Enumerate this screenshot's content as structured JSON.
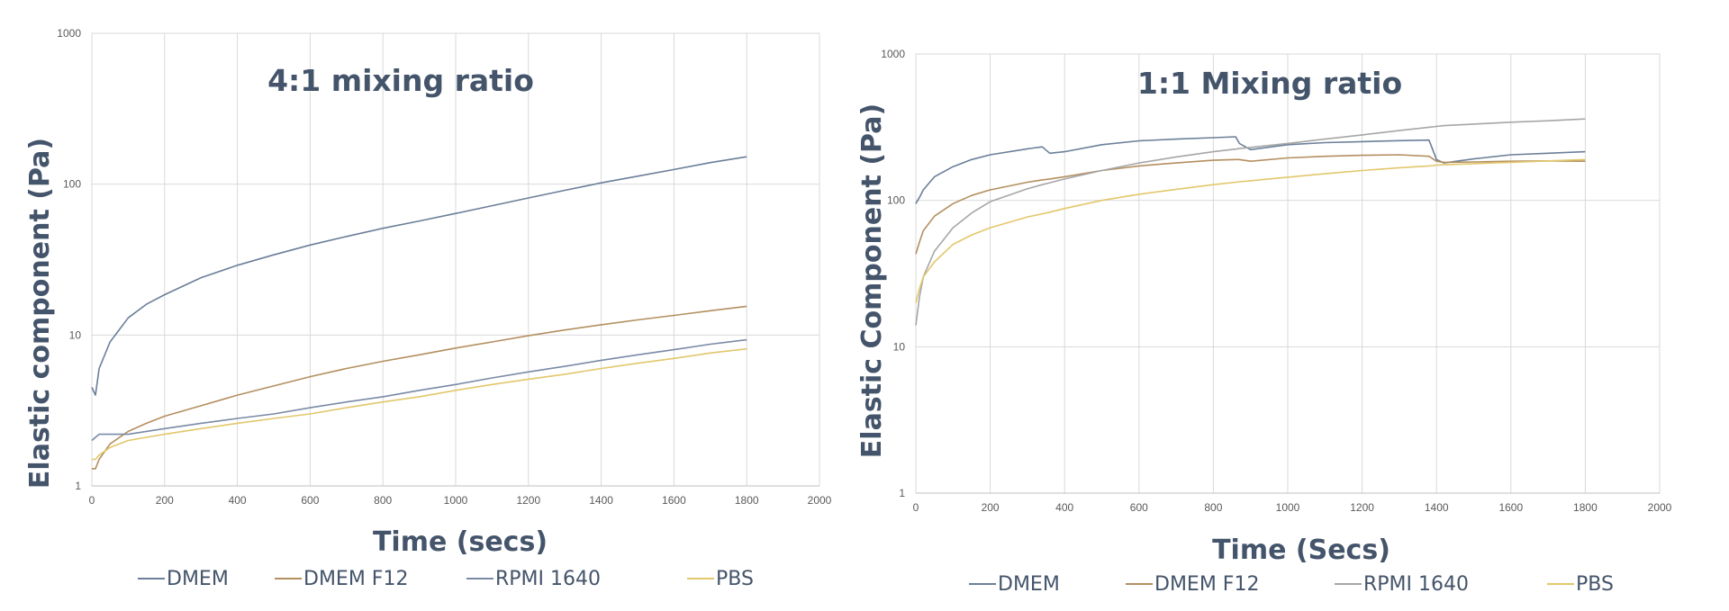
{
  "chart_data": [
    {
      "type": "line",
      "title": "4:1 mixing ratio",
      "xlabel": "Time (secs)",
      "ylabel": "Elastic component (Pa)",
      "xlim": [
        0,
        2000
      ],
      "ylim": [
        1,
        1000
      ],
      "yscale": "log",
      "grid": true,
      "legend_position": "bottom",
      "x_ticks": [
        "0",
        "200",
        "400",
        "600",
        "800",
        "1000",
        "1200",
        "1400",
        "1600",
        "1800",
        "2000"
      ],
      "y_ticks": [
        "1",
        "10",
        "100",
        "1000"
      ],
      "x": [
        0,
        10,
        20,
        50,
        100,
        150,
        200,
        300,
        400,
        500,
        600,
        700,
        800,
        900,
        1000,
        1100,
        1200,
        1300,
        1400,
        1500,
        1600,
        1700,
        1800
      ],
      "series": [
        {
          "name": "DMEM",
          "color": "#6B7F99",
          "values": [
            4.5,
            4.0,
            6.0,
            9.0,
            13.0,
            16.0,
            18.5,
            24.0,
            29.0,
            34.0,
            39.5,
            45.0,
            51.0,
            57.0,
            64.0,
            72.0,
            81.0,
            91.0,
            102.0,
            113.0,
            125.0,
            139.0,
            152.0
          ]
        },
        {
          "name": "DMEM F12",
          "color": "#B38F5F",
          "values": [
            1.3,
            1.3,
            1.5,
            1.9,
            2.3,
            2.6,
            2.9,
            3.4,
            4.0,
            4.6,
            5.3,
            6.0,
            6.7,
            7.4,
            8.2,
            9.0,
            9.9,
            10.8,
            11.7,
            12.6,
            13.5,
            14.5,
            15.5
          ]
        },
        {
          "name": "RPMI 1640",
          "color": "#7A8AA6",
          "values": [
            2.0,
            2.1,
            2.2,
            2.2,
            2.2,
            2.3,
            2.4,
            2.6,
            2.8,
            3.0,
            3.3,
            3.6,
            3.9,
            4.3,
            4.7,
            5.2,
            5.7,
            6.2,
            6.8,
            7.4,
            8.0,
            8.7,
            9.3
          ]
        },
        {
          "name": "PBS",
          "color": "#E2C76B",
          "values": [
            1.5,
            1.5,
            1.6,
            1.8,
            2.0,
            2.1,
            2.2,
            2.4,
            2.6,
            2.8,
            3.0,
            3.3,
            3.6,
            3.9,
            4.3,
            4.7,
            5.1,
            5.5,
            6.0,
            6.5,
            7.0,
            7.6,
            8.1
          ]
        }
      ]
    },
    {
      "type": "line",
      "title": "1:1 Mixing ratio",
      "xlabel": "Time (Secs)",
      "ylabel": "Elastic Component (Pa)",
      "xlim": [
        0,
        2000
      ],
      "ylim": [
        1,
        1000
      ],
      "yscale": "log",
      "grid": true,
      "legend_position": "bottom",
      "x_ticks": [
        "0",
        "200",
        "400",
        "600",
        "800",
        "1000",
        "1200",
        "1400",
        "1600",
        "1800",
        "2000"
      ],
      "y_ticks": [
        "1",
        "10",
        "100",
        "1000"
      ],
      "x": [
        0,
        10,
        20,
        50,
        100,
        150,
        200,
        300,
        340,
        360,
        400,
        500,
        600,
        700,
        800,
        860,
        870,
        900,
        1000,
        1100,
        1200,
        1300,
        1380,
        1400,
        1420,
        1500,
        1600,
        1700,
        1800
      ],
      "series": [
        {
          "name": "DMEM",
          "color": "#6B7F99",
          "values": [
            95,
            105,
            118,
            145,
            170,
            190,
            205,
            225,
            232,
            210,
            215,
            240,
            255,
            262,
            268,
            272,
            245,
            222,
            240,
            248,
            252,
            256,
            258,
            190,
            180,
            192,
            205,
            210,
            215
          ]
        },
        {
          "name": "DMEM F12",
          "color": "#B38F5F",
          "values": [
            43,
            52,
            62,
            78,
            95,
            108,
            118,
            133,
            138,
            140,
            145,
            160,
            172,
            180,
            188,
            190,
            190,
            185,
            195,
            200,
            203,
            205,
            200,
            185,
            182,
            183,
            185,
            186,
            185
          ]
        },
        {
          "name": "RPMI 1640",
          "color": "#A6A6A6",
          "values": [
            14,
            22,
            30,
            45,
            65,
            82,
            98,
            120,
            128,
            132,
            140,
            160,
            180,
            198,
            215,
            224,
            226,
            230,
            245,
            262,
            280,
            300,
            316,
            320,
            324,
            332,
            342,
            350,
            360
          ]
        },
        {
          "name": "PBS",
          "color": "#E2C76B",
          "values": [
            20,
            25,
            30,
            38,
            50,
            58,
            65,
            77,
            81,
            83,
            88,
            100,
            110,
            119,
            128,
            133,
            134,
            136,
            144,
            152,
            160,
            167,
            172,
            174,
            175,
            178,
            182,
            186,
            190
          ]
        }
      ]
    }
  ]
}
